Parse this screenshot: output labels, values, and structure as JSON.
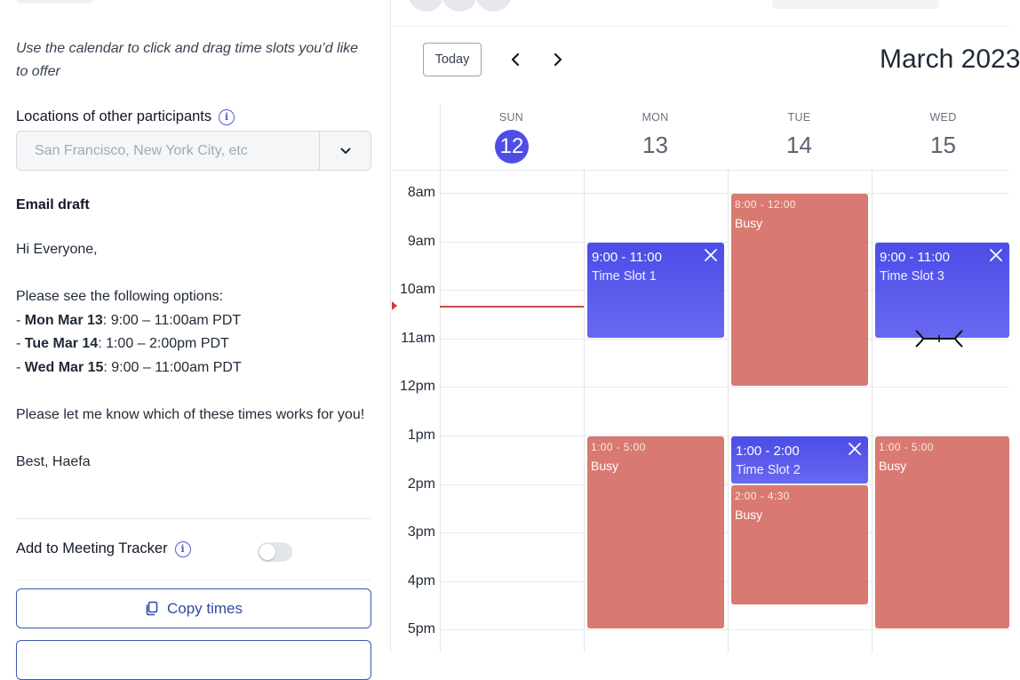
{
  "sidebar": {
    "instructions": "Use the calendar to click and drag time slots you’d like to offer",
    "locations": {
      "label": "Locations of other participants",
      "placeholder": "San Francisco, New York City, etc"
    },
    "email": {
      "heading": "Email draft",
      "greeting": "Hi Everyone,",
      "intro": "Please see the following options:",
      "options": [
        {
          "prefix": "- ",
          "day": "Mon Mar 13",
          "time": ": 9:00 – 11:00am PDT"
        },
        {
          "prefix": "- ",
          "day": "Tue Mar 14",
          "time": ": 1:00 – 2:00pm PDT"
        },
        {
          "prefix": "- ",
          "day": "Wed Mar 15",
          "time": ": 9:00 – 11:00am PDT"
        }
      ],
      "closing": "Please let me know which of these times works for you!",
      "signoff": "Best, Haefa"
    },
    "meeting_tracker": {
      "label": "Add to Meeting Tracker",
      "enabled": false
    },
    "copy_button": "Copy times"
  },
  "calendar": {
    "today_button": "Today",
    "month_title": "March 2023",
    "days": [
      {
        "dow": "SUN",
        "num": "12",
        "is_today": true
      },
      {
        "dow": "MON",
        "num": "13",
        "is_today": false
      },
      {
        "dow": "TUE",
        "num": "14",
        "is_today": false
      },
      {
        "dow": "WED",
        "num": "15",
        "is_today": false
      }
    ],
    "hours": [
      "8am",
      "9am",
      "10am",
      "11am",
      "12pm",
      "1pm",
      "2pm",
      "3pm",
      "4pm",
      "5pm"
    ],
    "events": [
      {
        "day": 2,
        "start": 8.0,
        "end": 12.0,
        "type": "busy",
        "time": "8:00 - 12:00",
        "title": "Busy"
      },
      {
        "day": 1,
        "start": 9.0,
        "end": 11.0,
        "type": "slot",
        "time": "9:00 - 11:00",
        "title": "Time Slot 1"
      },
      {
        "day": 3,
        "start": 9.0,
        "end": 11.0,
        "type": "slot",
        "time": "9:00 - 11:00",
        "title": "Time Slot 3"
      },
      {
        "day": 1,
        "start": 13.0,
        "end": 17.0,
        "type": "busy",
        "time": "1:00 - 5:00",
        "title": "Busy"
      },
      {
        "day": 2,
        "start": 13.0,
        "end": 14.0,
        "type": "slot",
        "time": "1:00 - 2:00",
        "title": "Time Slot 2"
      },
      {
        "day": 2,
        "start": 14.0,
        "end": 16.5,
        "type": "busy",
        "time": "2:00 - 4:30",
        "title": "Busy"
      },
      {
        "day": 3,
        "start": 13.0,
        "end": 17.0,
        "type": "busy",
        "time": "1:00 - 5:00",
        "title": "Busy"
      }
    ],
    "colors": {
      "accent": "#4e4ee6",
      "busy": "#d87a71",
      "now_line": "#c74b4b"
    }
  }
}
